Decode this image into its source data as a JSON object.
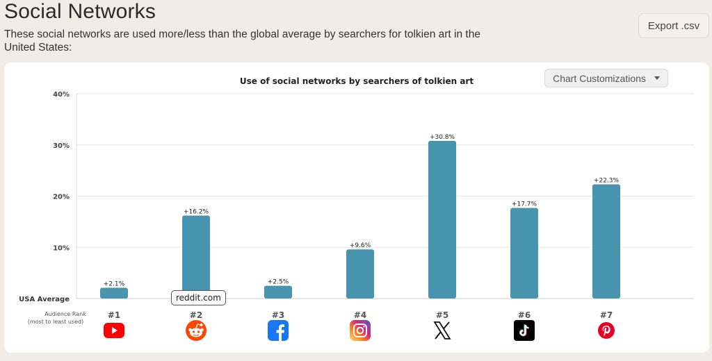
{
  "header": {
    "title": "Social Networks",
    "subtitle": "These social networks are used more/less than the global average by searchers for tolkien art in the United States:",
    "export_label": "Export .csv"
  },
  "controls": {
    "customize_label": "Chart Customizations"
  },
  "tooltip": {
    "text": "reddit.com"
  },
  "chart_data": {
    "type": "bar",
    "title": "Use of social networks by searchers of tolkien art",
    "baseline_label": "USA Average",
    "rank_caption_line1": "Audience Rank",
    "rank_caption_line2": "(most to least used)",
    "categories": [
      "#1",
      "#2",
      "#3",
      "#4",
      "#5",
      "#6",
      "#7"
    ],
    "networks": [
      "YouTube",
      "Reddit",
      "Facebook",
      "Instagram",
      "X",
      "TikTok",
      "Pinterest"
    ],
    "values": [
      2.1,
      16.2,
      2.5,
      9.6,
      30.8,
      17.7,
      22.3
    ],
    "value_labels": [
      "+2.1%",
      "+16.2%",
      "+2.5%",
      "+9.6%",
      "+30.8%",
      "+17.7%",
      "+22.3%"
    ],
    "yticks": [
      10,
      20,
      30,
      40
    ],
    "ytick_labels": [
      "10%",
      "20%",
      "30%",
      "40%"
    ],
    "ylim": [
      0,
      40
    ],
    "bar_color": "#4893ad",
    "grid": true
  },
  "icons": [
    "youtube-icon",
    "reddit-icon",
    "facebook-icon",
    "instagram-icon",
    "x-icon",
    "tiktok-icon",
    "pinterest-icon"
  ],
  "colors": {
    "background": "#f1ede6",
    "card": "#ffffff",
    "bar": "#4893ad",
    "youtube": "#ff0000",
    "reddit": "#ff4500",
    "facebook": "#1877f2",
    "pinterest": "#e60023"
  }
}
